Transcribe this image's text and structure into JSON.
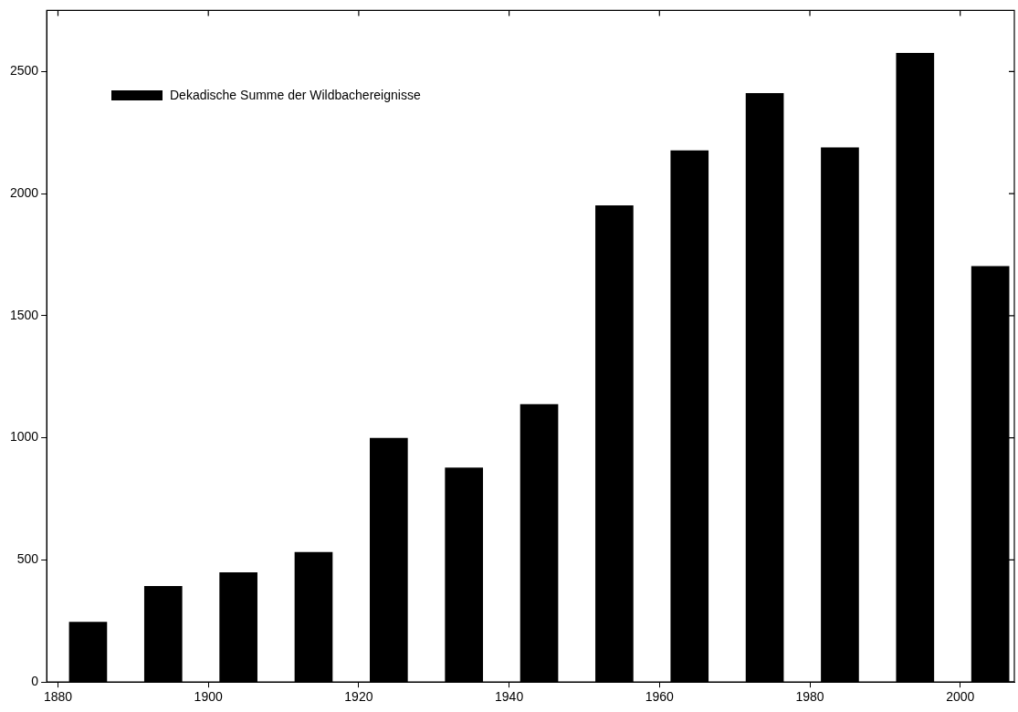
{
  "chart_data": {
    "type": "bar",
    "x": [
      1884,
      1894,
      1904,
      1914,
      1924,
      1934,
      1944,
      1954,
      1964,
      1974,
      1984,
      1994,
      2004
    ],
    "series": [
      {
        "name": "Dekadische Summe der Wildbachereignisse",
        "color": "#000000",
        "values": [
          245,
          392,
          448,
          531,
          998,
          877,
          1137,
          1950,
          2176,
          2410,
          2188,
          2575,
          1702
        ]
      }
    ],
    "xlim": [
      1878.5,
      2007.2
    ],
    "xticks": [
      1880,
      1900,
      1920,
      1940,
      1960,
      1980,
      2000
    ],
    "ylim": [
      0,
      2750
    ],
    "yticks": [
      0,
      500,
      1000,
      1500,
      2000,
      2500
    ],
    "legend": "top left",
    "grid": false
  }
}
